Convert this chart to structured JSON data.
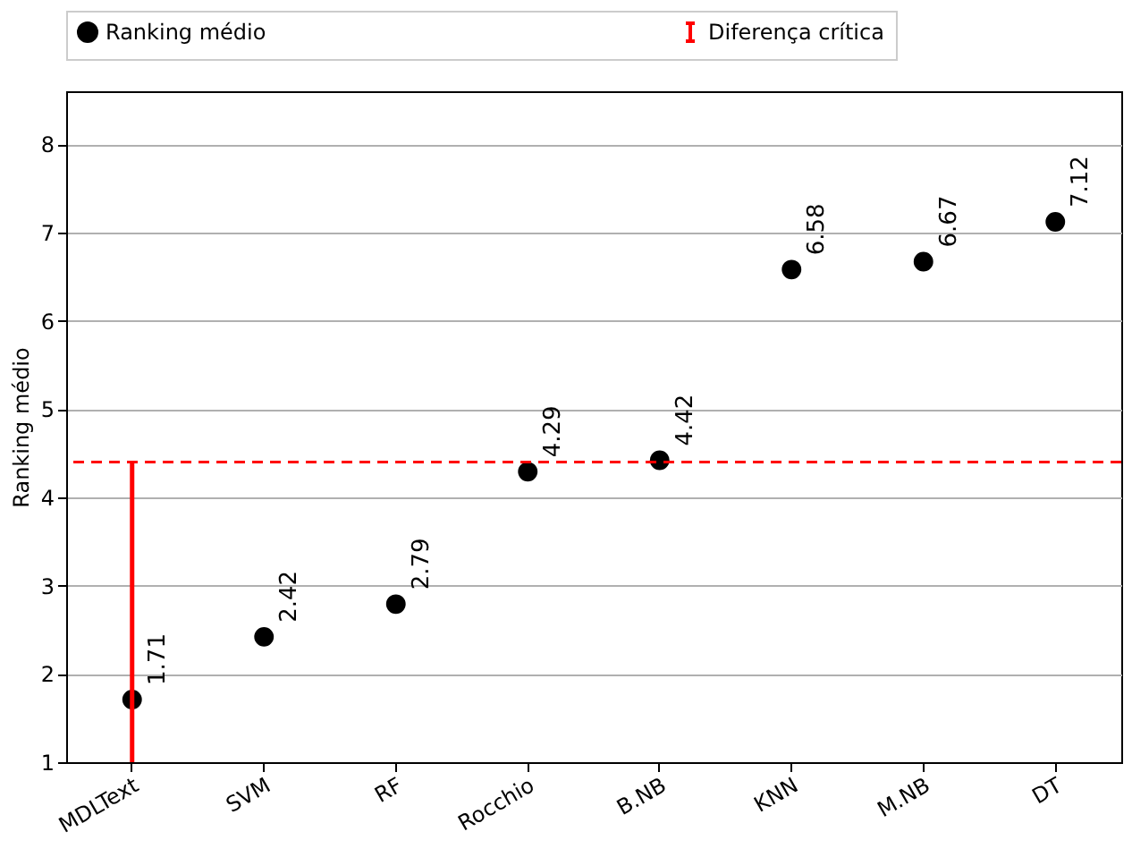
{
  "chart_data": {
    "type": "scatter",
    "ylabel": "Ranking médio",
    "categories": [
      "MDLText",
      "SVM",
      "RF",
      "Rocchio",
      "B.NB",
      "KNN",
      "M.NB",
      "DT"
    ],
    "series": [
      {
        "name": "Ranking médio",
        "color": "#000000",
        "values": [
          1.71,
          2.42,
          2.79,
          4.29,
          4.42,
          6.58,
          6.67,
          7.12
        ],
        "errors": [
          [
            1.0,
            4.4
          ],
          null,
          null,
          null,
          null,
          null,
          null,
          null
        ]
      }
    ],
    "ref_lines": [
      {
        "axis": "y",
        "value": 4.4,
        "label": "Diferença crítica",
        "color": "#ff0000",
        "line_style": "dashed"
      }
    ],
    "ylim": [
      1,
      8.6
    ],
    "yticks": [
      1,
      2,
      3,
      4,
      5,
      6,
      7,
      8
    ],
    "grid": "y",
    "legend": "top",
    "marker": "circle",
    "data_labels": true
  }
}
